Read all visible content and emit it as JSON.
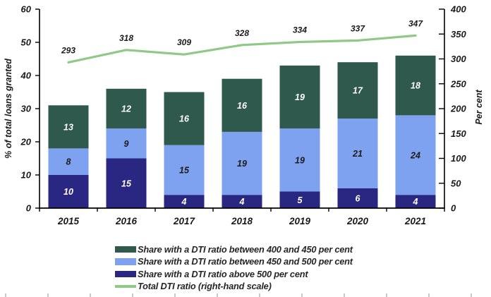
{
  "chart_data": {
    "type": "bar",
    "subtype": "stacked-bar-with-line-combo",
    "categories": [
      "2015",
      "2016",
      "2017",
      "2018",
      "2019",
      "2020",
      "2021"
    ],
    "series": [
      {
        "name": "Share with a DTI ratio above 500 per cent",
        "type": "bar",
        "stack_position": "bottom",
        "color": "#292782",
        "label_color": "#ffffff",
        "values": [
          10,
          15,
          4,
          4,
          5,
          6,
          4
        ]
      },
      {
        "name": "Share with a DTI ratio between 450 and 500 per cent",
        "type": "bar",
        "stack_position": "middle",
        "color": "#7EA1F0",
        "label_color": "#1c1c1c",
        "values": [
          8,
          9,
          15,
          19,
          19,
          21,
          24
        ]
      },
      {
        "name": "Share with a DTI ratio between 400 and 450 per cent",
        "type": "bar",
        "stack_position": "top",
        "color": "#2F594C",
        "label_color": "#ffffff",
        "values": [
          13,
          12,
          16,
          16,
          19,
          17,
          18
        ]
      },
      {
        "name": "Total DTI ratio (right-hand scale)",
        "type": "line",
        "axis": "right",
        "color": "#90C886",
        "label_color": "#1a1a1a",
        "values": [
          293,
          318,
          309,
          328,
          334,
          337,
          347
        ]
      }
    ],
    "left_axis": {
      "title": "% of total loans granted",
      "min": 0,
      "max": 60,
      "ticks": [
        0,
        10,
        20,
        30,
        40,
        50,
        60
      ]
    },
    "right_axis": {
      "title": "Per cent",
      "min": 0,
      "max": 400,
      "ticks": [
        0,
        50,
        100,
        150,
        200,
        250,
        300,
        350,
        400
      ]
    },
    "grid": false,
    "legend_position": "bottom",
    "legend": [
      {
        "label": "Share with a DTI ratio between 400 and 450 per cent",
        "swatch": "rect",
        "color": "#2F594C"
      },
      {
        "label": "Share with a DTI ratio between 450 and 500 per cent",
        "swatch": "rect",
        "color": "#7EA1F0"
      },
      {
        "label": "Share with a DTI ratio above 500 per cent",
        "swatch": "rect",
        "color": "#292782"
      },
      {
        "label": "Total DTI ratio (right-hand scale)",
        "swatch": "line",
        "color": "#90C886"
      }
    ],
    "axis_color": "#000000",
    "background_color": "#ffffff"
  }
}
